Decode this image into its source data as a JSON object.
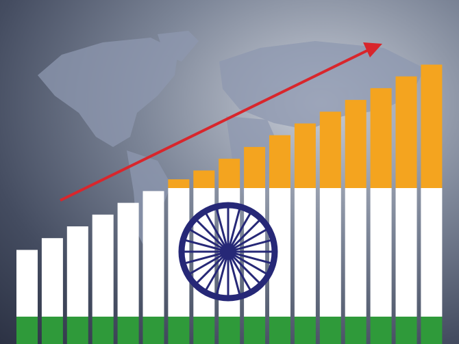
{
  "colors": {
    "saffron": "#f4a41f",
    "white": "#ffffff",
    "green": "#2f9a3a",
    "chakra": "#262877",
    "arrow": "#d8262c",
    "map": "#8e98b0"
  },
  "bar_levels": [
    0.32,
    0.36,
    0.4,
    0.44,
    0.48,
    0.52,
    0.56,
    0.59,
    0.63,
    0.67,
    0.71,
    0.75,
    0.79,
    0.83,
    0.87,
    0.91,
    0.95
  ],
  "trend": "rising"
}
